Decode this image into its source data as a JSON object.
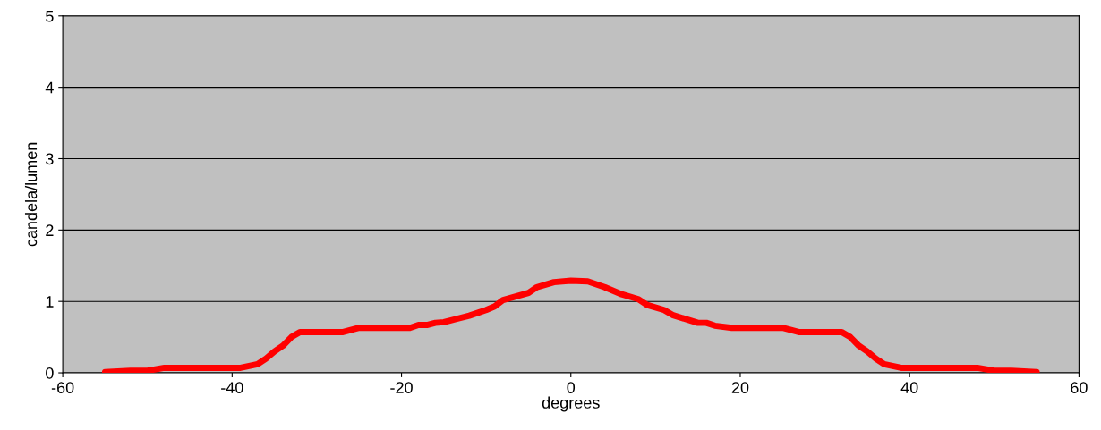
{
  "chart_data": {
    "type": "line",
    "xlabel": "degrees",
    "ylabel": "candela/lumen",
    "x": [
      -55,
      -52,
      -50,
      -48,
      -40,
      -39,
      -37,
      -36,
      -35,
      -34,
      -33,
      -32,
      -27,
      -25,
      -19,
      -18,
      -17,
      -16,
      -15,
      -12,
      -10,
      -9,
      -8,
      -5,
      -4,
      -2,
      0,
      2,
      4,
      6,
      8,
      9,
      11,
      12,
      15,
      16,
      17,
      19,
      25,
      27,
      32,
      33,
      34,
      35,
      36,
      37,
      39,
      48,
      50,
      52,
      55
    ],
    "series": [
      {
        "color": "#ff0000",
        "values": [
          0.01,
          0.03,
          0.03,
          0.07,
          0.07,
          0.07,
          0.12,
          0.2,
          0.3,
          0.38,
          0.5,
          0.57,
          0.57,
          0.63,
          0.63,
          0.67,
          0.67,
          0.7,
          0.71,
          0.8,
          0.88,
          0.93,
          1.02,
          1.12,
          1.2,
          1.27,
          1.29,
          1.28,
          1.2,
          1.1,
          1.03,
          0.95,
          0.88,
          0.81,
          0.7,
          0.7,
          0.66,
          0.63,
          0.63,
          0.57,
          0.57,
          0.5,
          0.38,
          0.3,
          0.2,
          0.12,
          0.07,
          0.07,
          0.03,
          0.03,
          0.01
        ]
      }
    ],
    "xlim": [
      -60,
      60
    ],
    "xticks": [
      -60,
      -40,
      -20,
      0,
      20,
      40,
      60
    ],
    "ylim": [
      0,
      5
    ],
    "yticks": [
      0,
      1,
      2,
      3,
      4,
      5
    ],
    "grid": "y",
    "marker": "none",
    "line_style": "solid",
    "legend": false
  }
}
